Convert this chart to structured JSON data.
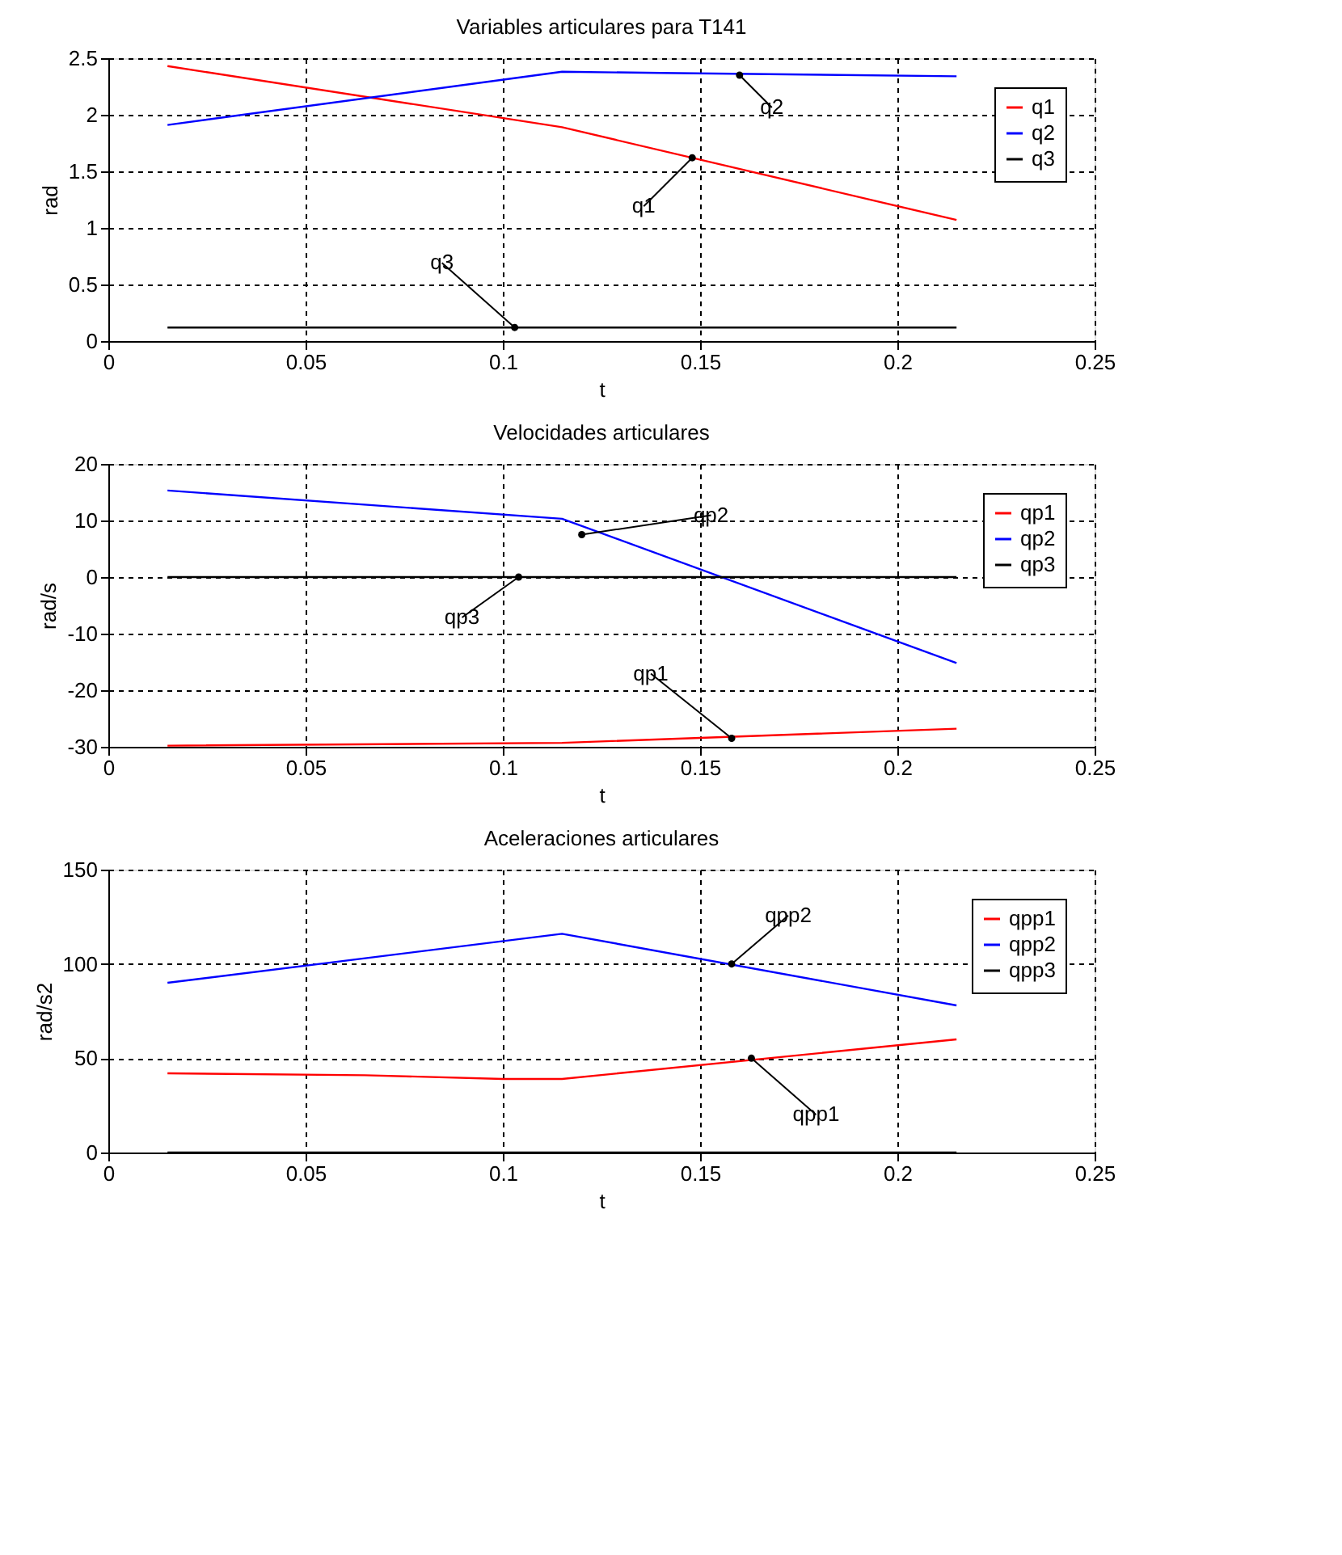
{
  "chart_data": [
    {
      "type": "line",
      "title": "Variables articulares para T141",
      "xlabel": "t",
      "ylabel": "rad",
      "xlim": [
        0,
        0.25
      ],
      "xticks": [
        0,
        0.05,
        0.1,
        0.15,
        0.2,
        0.25
      ],
      "ylim": [
        0,
        2.5
      ],
      "yticks": [
        0,
        0.5,
        1,
        1.5,
        2,
        2.5
      ],
      "grid": true,
      "legend": "top right",
      "line_style": "solid",
      "series": [
        {
          "name": "q1",
          "color": "#ff0000",
          "x": [
            0.015,
            0.115,
            0.215
          ],
          "values": [
            2.43,
            1.89,
            1.07
          ]
        },
        {
          "name": "q2",
          "color": "#0000ff",
          "x": [
            0.015,
            0.115,
            0.14,
            0.215
          ],
          "values": [
            1.91,
            2.38,
            2.37,
            2.34
          ]
        },
        {
          "name": "q3",
          "color": "#000000",
          "x": [
            0.015,
            0.215
          ],
          "values": [
            0.12,
            0.12
          ]
        }
      ],
      "annotations": [
        {
          "text": "q2",
          "x": 0.16,
          "y": 2.35
        },
        {
          "text": "q1",
          "x": 0.148,
          "y": 1.62
        },
        {
          "text": "q3",
          "x": 0.103,
          "y": 0.12
        }
      ]
    },
    {
      "type": "line",
      "title": "Velocidades articulares",
      "xlabel": "t",
      "ylabel": "rad/s",
      "xlim": [
        0,
        0.25
      ],
      "xticks": [
        0,
        0.05,
        0.1,
        0.15,
        0.2,
        0.25
      ],
      "ylim": [
        -30,
        20
      ],
      "yticks": [
        -30,
        -20,
        -10,
        0,
        10,
        20
      ],
      "grid": true,
      "legend": "top right",
      "line_style": "solid",
      "series": [
        {
          "name": "qp1",
          "color": "#ff0000",
          "x": [
            0.015,
            0.115,
            0.215
          ],
          "values": [
            -29.8,
            -29.3,
            -26.8
          ]
        },
        {
          "name": "qp2",
          "color": "#0000ff",
          "x": [
            0.015,
            0.115,
            0.215
          ],
          "values": [
            15.3,
            10.3,
            -15.2
          ]
        },
        {
          "name": "qp3",
          "color": "#000000",
          "x": [
            0.015,
            0.215
          ],
          "values": [
            0,
            0
          ]
        }
      ],
      "annotations": [
        {
          "text": "qp2",
          "x": 0.12,
          "y": 7.5
        },
        {
          "text": "qp3",
          "x": 0.104,
          "y": 0
        },
        {
          "text": "qp1",
          "x": 0.158,
          "y": -28.5
        }
      ]
    },
    {
      "type": "line",
      "title": "Aceleraciones articulares",
      "xlabel": "t",
      "ylabel": "rad/s2",
      "xlim": [
        0,
        0.25
      ],
      "xticks": [
        0,
        0.05,
        0.1,
        0.15,
        0.2,
        0.25
      ],
      "ylim": [
        0,
        150
      ],
      "yticks": [
        0,
        50,
        100,
        150
      ],
      "grid": true,
      "legend": "top right",
      "line_style": "solid",
      "series": [
        {
          "name": "qpp1",
          "color": "#ff0000",
          "x": [
            0.015,
            0.065,
            0.1,
            0.115,
            0.215
          ],
          "values": [
            42,
            41,
            39,
            39,
            60
          ]
        },
        {
          "name": "qpp2",
          "color": "#0000ff",
          "x": [
            0.015,
            0.115,
            0.215
          ],
          "values": [
            90,
            116,
            78
          ]
        },
        {
          "name": "qpp3",
          "color": "#000000",
          "x": [
            0.015,
            0.215
          ],
          "values": [
            0,
            0
          ]
        }
      ],
      "annotations": [
        {
          "text": "qpp2",
          "x": 0.158,
          "y": 100
        },
        {
          "text": "qpp1",
          "x": 0.163,
          "y": 50
        }
      ]
    }
  ]
}
